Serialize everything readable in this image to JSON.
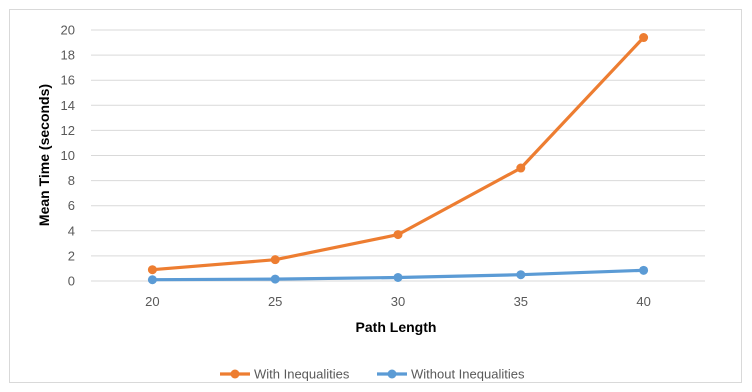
{
  "chart_data": {
    "type": "line",
    "title": "",
    "xlabel": "Path Length",
    "ylabel": "Mean Time (seconds)",
    "categories": [
      "20",
      "25",
      "30",
      "35",
      "40"
    ],
    "ylim": [
      0,
      20
    ],
    "yticks": [
      "0",
      "2",
      "4",
      "6",
      "8",
      "10",
      "12",
      "14",
      "16",
      "18",
      "20"
    ],
    "grid": true,
    "legend_position": "bottom",
    "series": [
      {
        "name": "With Inequalities",
        "color": "#ed7d31",
        "values": [
          0.9,
          1.7,
          3.7,
          9.0,
          19.4
        ]
      },
      {
        "name": "Without Inequalities",
        "color": "#5b9bd5",
        "values": [
          0.1,
          0.15,
          0.28,
          0.5,
          0.85
        ]
      }
    ]
  }
}
